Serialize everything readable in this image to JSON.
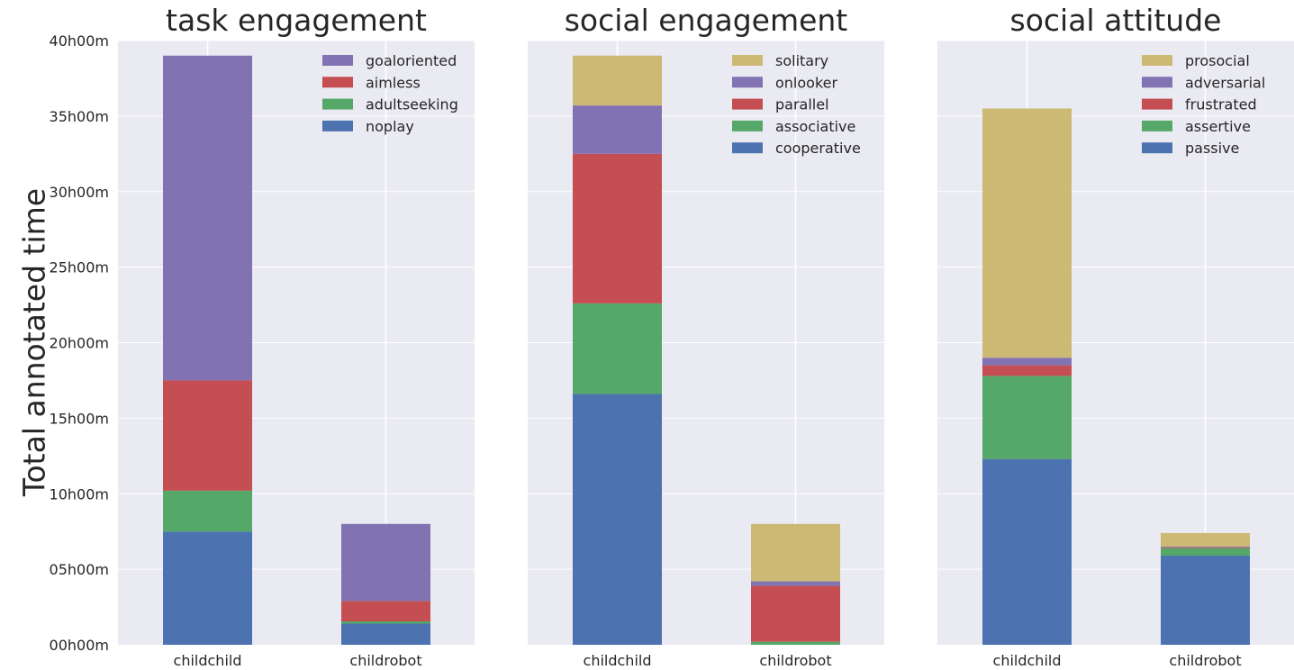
{
  "figure": {
    "ylabel": "Total annotated time"
  },
  "chart_data": [
    {
      "type": "bar",
      "stacked": true,
      "title": "task engagement",
      "categories": [
        "childchild",
        "childrobot"
      ],
      "ylabel": "Total annotated time",
      "ylim_hours": [
        0,
        40
      ],
      "yticks": [
        "00h00m",
        "05h00m",
        "10h00m",
        "15h00m",
        "20h00m",
        "25h00m",
        "30h00m",
        "35h00m",
        "40h00m"
      ],
      "series": [
        {
          "name": "noplay",
          "color": "#4c72b0",
          "values": [
            7.5,
            1.4
          ]
        },
        {
          "name": "adultseeking",
          "color": "#55a868",
          "values": [
            2.7,
            0.15
          ]
        },
        {
          "name": "aimless",
          "color": "#c44e52",
          "values": [
            7.3,
            1.35
          ]
        },
        {
          "name": "goaloriented",
          "color": "#8172b2",
          "values": [
            21.5,
            5.1
          ]
        }
      ],
      "legend": "top-right",
      "grid": true
    },
    {
      "type": "bar",
      "stacked": true,
      "title": "social engagement",
      "categories": [
        "childchild",
        "childrobot"
      ],
      "ylim_hours": [
        0,
        40
      ],
      "series": [
        {
          "name": "cooperative",
          "color": "#4c72b0",
          "values": [
            16.6,
            0.0
          ]
        },
        {
          "name": "associative",
          "color": "#55a868",
          "values": [
            6.0,
            0.2
          ]
        },
        {
          "name": "parallel",
          "color": "#c44e52",
          "values": [
            9.9,
            3.7
          ]
        },
        {
          "name": "onlooker",
          "color": "#8172b2",
          "values": [
            3.2,
            0.3
          ]
        },
        {
          "name": "solitary",
          "color": "#ccb974",
          "values": [
            3.3,
            3.8
          ]
        }
      ],
      "legend": "top-right",
      "grid": true
    },
    {
      "type": "bar",
      "stacked": true,
      "title": "social attitude",
      "categories": [
        "childchild",
        "childrobot"
      ],
      "ylim_hours": [
        0,
        40
      ],
      "series": [
        {
          "name": "passive",
          "color": "#4c72b0",
          "values": [
            12.3,
            5.9
          ]
        },
        {
          "name": "assertive",
          "color": "#55a868",
          "values": [
            5.5,
            0.5
          ]
        },
        {
          "name": "frustrated",
          "color": "#c44e52",
          "values": [
            0.7,
            0.05
          ]
        },
        {
          "name": "adversarial",
          "color": "#8172b2",
          "values": [
            0.5,
            0.05
          ]
        },
        {
          "name": "prosocial",
          "color": "#ccb974",
          "values": [
            16.5,
            0.9
          ]
        }
      ],
      "legend": "top-right",
      "grid": true
    }
  ]
}
